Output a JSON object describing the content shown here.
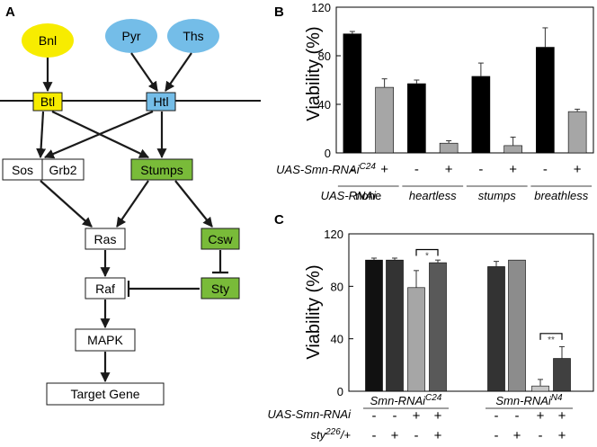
{
  "panels": {
    "a": "A",
    "b": "B",
    "c": "C"
  },
  "pathway": {
    "ligands": {
      "bnl": "Bnl",
      "pyr": "Pyr",
      "ths": "Ths"
    },
    "receptors": {
      "btl": "Btl",
      "htl": "Htl"
    },
    "adaptors": {
      "sos": "Sos",
      "grb2": "Grb2",
      "stumps": "Stumps"
    },
    "ras": "Ras",
    "csw": "Csw",
    "raf": "Raf",
    "sty": "Sty",
    "mapk": "MAPK",
    "target": "Target Gene"
  },
  "colors": {
    "yellow": "#f7ec00",
    "blue": "#74bde8",
    "green": "#79bb39"
  },
  "chart_data": [
    {
      "type": "bar",
      "panel": "B",
      "ylabel": "Viability (%)",
      "ylim": [
        0,
        120
      ],
      "yticks": [
        0,
        40,
        80,
        120
      ],
      "row_labels": {
        "smn": "UAS-Smn-RNAi",
        "smn_sup": "C24",
        "rnai": "UAS-RNAi"
      },
      "groups": [
        "none",
        "heartless",
        "stumps",
        "breathless"
      ],
      "smn_rnai_c24": [
        "-",
        "+",
        "-",
        "+",
        "-",
        "+",
        "-",
        "+"
      ],
      "colors": [
        "#000000",
        "#a6a6a6",
        "#000000",
        "#a6a6a6",
        "#000000",
        "#a6a6a6",
        "#000000",
        "#a6a6a6"
      ],
      "values": [
        98,
        54,
        57,
        8,
        63,
        6,
        87,
        34
      ],
      "errors": [
        2,
        7,
        3,
        2,
        11,
        7,
        16,
        2
      ]
    },
    {
      "type": "bar",
      "panel": "C",
      "ylabel": "Viability (%)",
      "ylim": [
        0,
        120
      ],
      "yticks": [
        0,
        40,
        80,
        120
      ],
      "row_labels": {
        "smn": "UAS-Smn-RNAi",
        "sty": "sty",
        "sty_sup": "226",
        "sty_suffix": "/+"
      },
      "groups": [
        {
          "name": "Smn-RNAi",
          "sup": "C24"
        },
        {
          "name": "Smn-RNAi",
          "sup": "N4"
        }
      ],
      "smn_rnai": [
        "-",
        "-",
        "+",
        "+",
        "-",
        "-",
        "+",
        "+"
      ],
      "sty_226": [
        "-",
        "+",
        "-",
        "+",
        "-",
        "+",
        "-",
        "+"
      ],
      "colors": [
        "#111111",
        "#333333",
        "#a6a6a6",
        "#595959",
        "#333333",
        "#8c8c8c",
        "#c8c8c8",
        "#404040"
      ],
      "values": [
        100,
        100,
        79,
        98,
        95,
        100,
        4,
        25
      ],
      "errors": [
        1.5,
        1.5,
        13,
        2,
        4,
        0,
        5,
        9
      ],
      "significance": [
        "*",
        "**"
      ]
    }
  ]
}
